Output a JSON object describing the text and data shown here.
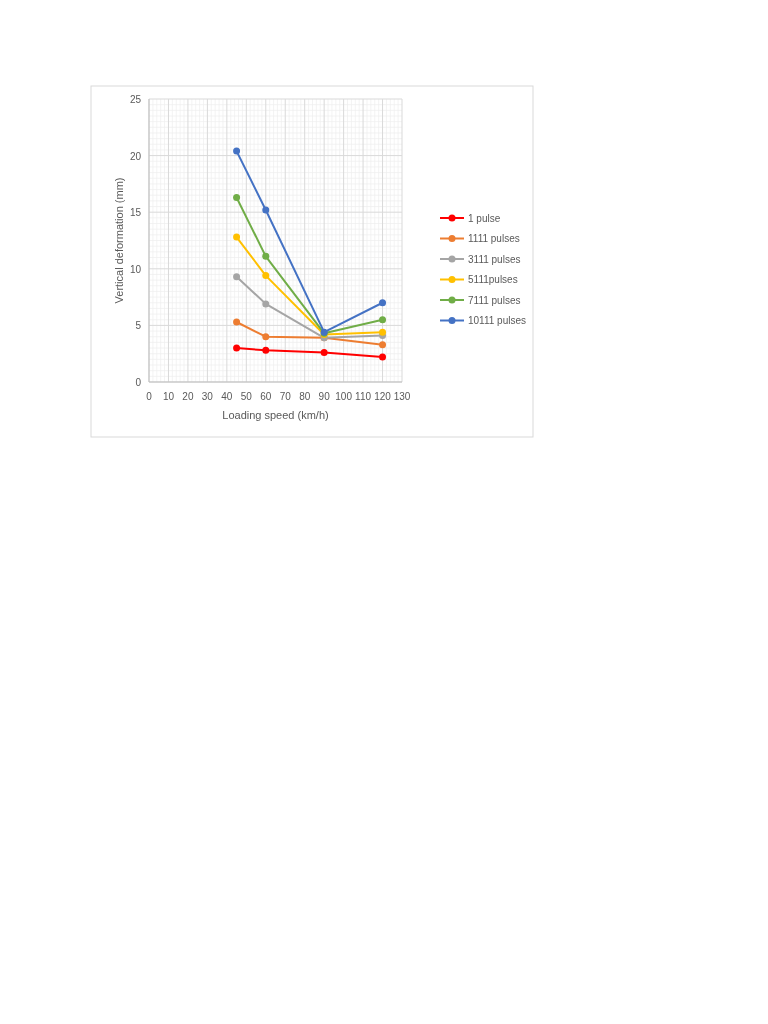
{
  "chart_data": {
    "type": "line",
    "xlabel": "Loading speed  (km/h)",
    "ylabel": "Vertical deformation (mm)",
    "x": [
      45,
      60,
      90,
      120
    ],
    "xlim": [
      0,
      130
    ],
    "xticks": [
      0,
      10,
      20,
      30,
      40,
      50,
      60,
      70,
      80,
      90,
      100,
      110,
      120,
      130
    ],
    "ylim": [
      0,
      25
    ],
    "yticks": [
      0,
      5,
      10,
      15,
      20,
      25
    ],
    "grid": true,
    "legend": "right",
    "marker": "circle",
    "line_style": "solid",
    "series": [
      {
        "name": "1 pulse",
        "color": "#ff0000",
        "values": [
          3,
          2.8,
          2.6,
          2.2
        ]
      },
      {
        "name": "1111 pulses",
        "color": "#ed7d31",
        "values": [
          5.3,
          4,
          3.9,
          3.3
        ]
      },
      {
        "name": "3111 pulses",
        "color": "#a5a5a5",
        "values": [
          9.3,
          6.9,
          3.9,
          4.1
        ]
      },
      {
        "name": "5111pulses",
        "color": "#ffc000",
        "values": [
          12.8,
          9.4,
          4.2,
          4.4
        ]
      },
      {
        "name": "7111 pulses",
        "color": "#70ad47",
        "values": [
          16.3,
          11.1,
          4.3,
          5.5
        ]
      },
      {
        "name": "10111 pulses",
        "color": "#4472c4",
        "values": [
          20.4,
          15.2,
          4.4,
          7
        ]
      }
    ]
  }
}
